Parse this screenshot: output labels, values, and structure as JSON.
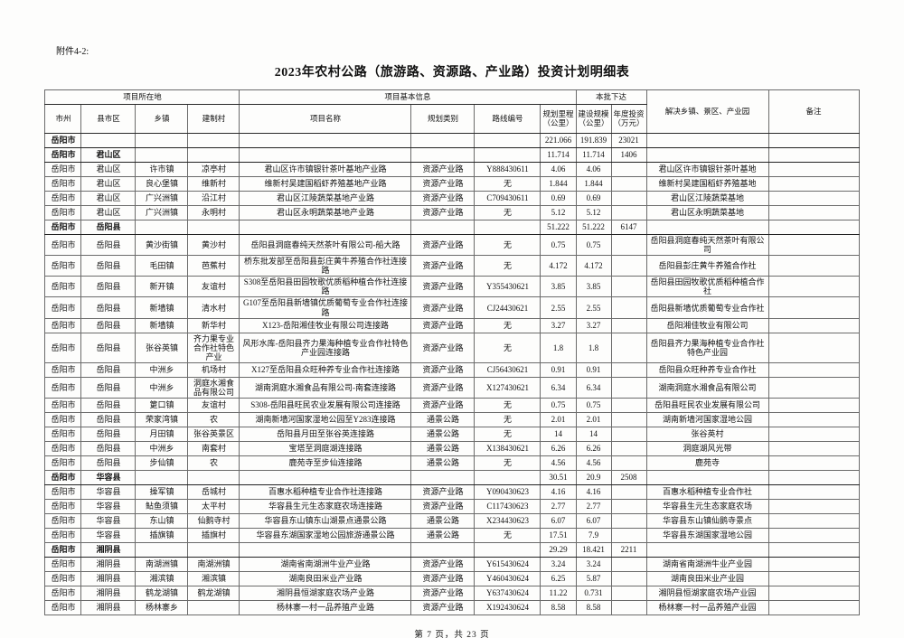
{
  "page": {
    "attachment_label": "附件4-2:",
    "title": "2023年农村公路（旅游路、资源路、产业路）投资计划明细表",
    "footer": "第 7 页，共 23 页"
  },
  "table": {
    "header": {
      "group_location": "项目所在地",
      "group_info": "项目基本信息",
      "group_batch": "本批下达",
      "col_benefit": "解决乡镇、景区、产业园",
      "col_remark": "备注",
      "cols": [
        "市州",
        "县市区",
        "乡镇",
        "建制村",
        "项目名称",
        "规划类别",
        "路线编号",
        "规划里程（公里）",
        "建设规模（公里）",
        "年度投资（万元）"
      ]
    },
    "col_keys": [
      "city",
      "county",
      "town",
      "village",
      "project",
      "category",
      "route-code",
      "planned-km",
      "build-km",
      "invest",
      "benefit",
      "remark"
    ],
    "rows": [
      {
        "type": "summary",
        "cells": [
          "岳阳市",
          "",
          "",
          "",
          "",
          "",
          "",
          "221.066",
          "191.839",
          "23021",
          "",
          ""
        ]
      },
      {
        "type": "summary",
        "cells": [
          "岳阳市",
          "君山区",
          "",
          "",
          "",
          "",
          "",
          "11.714",
          "11.714",
          "1406",
          "",
          ""
        ]
      },
      {
        "type": "data",
        "cells": [
          "岳阳市",
          "君山区",
          "许市镇",
          "凉亭村",
          "君山区许市镇银针茶叶基地产业路",
          "资源产业路",
          "Y888430611",
          "4.06",
          "4.06",
          "",
          "君山区许市镇银针茶叶基地",
          ""
        ]
      },
      {
        "type": "data",
        "cells": [
          "岳阳市",
          "君山区",
          "良心堡镇",
          "维新村",
          "维新村吴建国稻虾养殖基地产业路",
          "资源产业路",
          "无",
          "1.844",
          "1.844",
          "",
          "维新村吴建国稻虾养殖基地",
          ""
        ]
      },
      {
        "type": "data",
        "cells": [
          "岳阳市",
          "君山区",
          "广兴洲镇",
          "沿江村",
          "君山区江陵蔬菜基地产业路",
          "资源产业路",
          "C709430611",
          "0.69",
          "0.69",
          "",
          "君山区江陵蔬菜基地",
          ""
        ]
      },
      {
        "type": "data",
        "cells": [
          "岳阳市",
          "君山区",
          "广兴洲镇",
          "永明村",
          "君山区永明蔬菜基地产业路",
          "资源产业路",
          "无",
          "5.12",
          "5.12",
          "",
          "君山区永明蔬菜基地",
          ""
        ]
      },
      {
        "type": "summary",
        "cells": [
          "岳阳市",
          "岳阳县",
          "",
          "",
          "",
          "",
          "",
          "51.222",
          "51.222",
          "6147",
          "",
          ""
        ]
      },
      {
        "type": "data",
        "cells": [
          "岳阳市",
          "岳阳县",
          "黄沙街镇",
          "黄沙村",
          "岳阳县洞庭春纯天然茶叶有限公司-船大路",
          "资源产业路",
          "无",
          "0.75",
          "0.75",
          "",
          "岳阳县洞庭春纯天然茶叶有限公司",
          ""
        ]
      },
      {
        "type": "data",
        "cells": [
          "岳阳市",
          "岳阳县",
          "毛田镇",
          "芭蕉村",
          "桥东批发部至岳阳县彭庄黄牛养殖合作社连接路",
          "资源产业路",
          "无",
          "4.172",
          "4.172",
          "",
          "岳阳县彭庄黄牛养殖合作社",
          ""
        ]
      },
      {
        "type": "data",
        "cells": [
          "岳阳市",
          "岳阳县",
          "新开镇",
          "友谊村",
          "S308至岳阳县田园牧歌优质稻种植合作社连接路",
          "资源产业路",
          "Y355430621",
          "3.85",
          "3.85",
          "",
          "岳阳县田园牧歌优质稻种植合作社",
          ""
        ]
      },
      {
        "type": "data",
        "cells": [
          "岳阳市",
          "岳阳县",
          "新墙镇",
          "清水村",
          "G107至岳阳县新墙镇优质葡萄专业合作社连接路",
          "资源产业路",
          "CJ24430621",
          "2.55",
          "2.55",
          "",
          "岳阳县新墙优质葡萄专业合作社",
          ""
        ]
      },
      {
        "type": "data",
        "cells": [
          "岳阳市",
          "岳阳县",
          "新墙镇",
          "新华村",
          "X123-岳阳湘佳牧业有限公司连接路",
          "资源产业路",
          "无",
          "3.27",
          "3.27",
          "",
          "岳阳湘佳牧业有限公司",
          ""
        ]
      },
      {
        "type": "data",
        "cells": [
          "岳阳市",
          "岳阳县",
          "张谷英镇",
          "齐力果专业合作社特色产业",
          "风形水库-岳阳县齐力果海种植专业合作社特色产业园连接路",
          "资源产业路",
          "无",
          "1.8",
          "1.8",
          "",
          "岳阳县齐力果海种植专业合作社特色产业园",
          ""
        ]
      },
      {
        "type": "data",
        "cells": [
          "岳阳市",
          "岳阳县",
          "中洲乡",
          "机场村",
          "X127至岳阳县众旺种养专业合作社连接路",
          "资源产业路",
          "CJ56430621",
          "0.91",
          "0.91",
          "",
          "岳阳县众旺种养专业合作社",
          ""
        ]
      },
      {
        "type": "data",
        "cells": [
          "岳阳市",
          "岳阳县",
          "中洲乡",
          "洞庭水湘食品有限公司",
          "湖南洞庭水湘食品有限公司-南套连接路",
          "资源产业路",
          "X127430621",
          "6.34",
          "6.34",
          "",
          "湖南洞庭水湘食品有限公司",
          ""
        ]
      },
      {
        "type": "data",
        "cells": [
          "岳阳市",
          "岳阳县",
          "筻口镇",
          "友谊村",
          "S308-岳阳县旺民农业发展有限公司连接路",
          "资源产业路",
          "无",
          "0.75",
          "0.75",
          "",
          "岳阳县旺民农业发展有限公司",
          ""
        ]
      },
      {
        "type": "data",
        "cells": [
          "岳阳市",
          "岳阳县",
          "荣家湾镇",
          "农",
          "湖南新墙河国家湿地公园至Y283连接路",
          "通景公路",
          "无",
          "2.01",
          "2.01",
          "",
          "湖南新墙河国家湿地公园",
          ""
        ]
      },
      {
        "type": "data",
        "cells": [
          "岳阳市",
          "岳阳县",
          "月田镇",
          "张谷英景区",
          "岳阳县月田至张谷英连接路",
          "通景公路",
          "无",
          "14",
          "14",
          "",
          "张谷英村",
          ""
        ]
      },
      {
        "type": "data",
        "cells": [
          "岳阳市",
          "岳阳县",
          "中洲乡",
          "南套村",
          "宝塔至洞庭湖连接路",
          "通景公路",
          "X138430621",
          "6.26",
          "6.26",
          "",
          "洞庭湖风光带",
          ""
        ]
      },
      {
        "type": "data",
        "cells": [
          "岳阳市",
          "岳阳县",
          "步仙镇",
          "农",
          "鹿苑寺至步仙连接路",
          "通景公路",
          "无",
          "4.56",
          "4.56",
          "",
          "鹿苑寺",
          ""
        ]
      },
      {
        "type": "summary",
        "cells": [
          "岳阳市",
          "华容县",
          "",
          "",
          "",
          "",
          "",
          "30.51",
          "20.9",
          "2508",
          "",
          ""
        ]
      },
      {
        "type": "data",
        "cells": [
          "岳阳市",
          "华容县",
          "操军镇",
          "岳城村",
          "百惠水稻种植专业合作社连接路",
          "资源产业路",
          "Y090430623",
          "4.16",
          "4.16",
          "",
          "百惠水稻种植专业合作社",
          ""
        ]
      },
      {
        "type": "data",
        "cells": [
          "岳阳市",
          "华容县",
          "鲇鱼须镇",
          "太平村",
          "华容县生元生态家庭农场连接路",
          "资源产业路",
          "C117430623",
          "2.77",
          "2.77",
          "",
          "华容县生元生态家庭农场",
          ""
        ]
      },
      {
        "type": "data",
        "cells": [
          "岳阳市",
          "华容县",
          "东山镇",
          "仙鹅寺村",
          "华容县东山镇东山湖景点通景公路",
          "通景公路",
          "X234430623",
          "6.07",
          "6.07",
          "",
          "华容县东山镇仙鹅寺景点",
          ""
        ]
      },
      {
        "type": "data",
        "cells": [
          "岳阳市",
          "华容县",
          "插旗镇",
          "插旗村",
          "华容县东湖国家湿地公园旅游通景公路",
          "通景公路",
          "无",
          "17.51",
          "7.9",
          "",
          "华容县东湖国家湿地公园",
          ""
        ]
      },
      {
        "type": "summary",
        "cells": [
          "岳阳市",
          "湘阴县",
          "",
          "",
          "",
          "",
          "",
          "29.29",
          "18.421",
          "2211",
          "",
          ""
        ]
      },
      {
        "type": "data",
        "cells": [
          "岳阳市",
          "湘阴县",
          "南湖洲镇",
          "南湖洲镇",
          "湖南省南湖洲牛业产业路",
          "资源产业路",
          "Y615430624",
          "3.24",
          "3.24",
          "",
          "湖南省南湖洲牛业产业园",
          ""
        ]
      },
      {
        "type": "data",
        "cells": [
          "岳阳市",
          "湘阴县",
          "湘滨镇",
          "湘滨镇",
          "湖南良田米业产业路",
          "资源产业路",
          "Y460430624",
          "6.25",
          "5.87",
          "",
          "湖南良田米业产业园",
          ""
        ]
      },
      {
        "type": "data",
        "cells": [
          "岳阳市",
          "湘阴县",
          "鹤龙湖镇",
          "鹤龙湖镇",
          "湘阴县恒湖家庭农场产业路",
          "资源产业路",
          "Y637430624",
          "11.22",
          "0.731",
          "",
          "湘阴县恒湖家庭农场产业园",
          ""
        ]
      },
      {
        "type": "data",
        "cells": [
          "岳阳市",
          "湘阴县",
          "杨林寨乡",
          "",
          "杨林寨一村一品养殖产业路",
          "资源产业路",
          "X192430624",
          "8.58",
          "8.58",
          "",
          "杨林寨一村一品养殖产业园",
          ""
        ]
      }
    ]
  }
}
